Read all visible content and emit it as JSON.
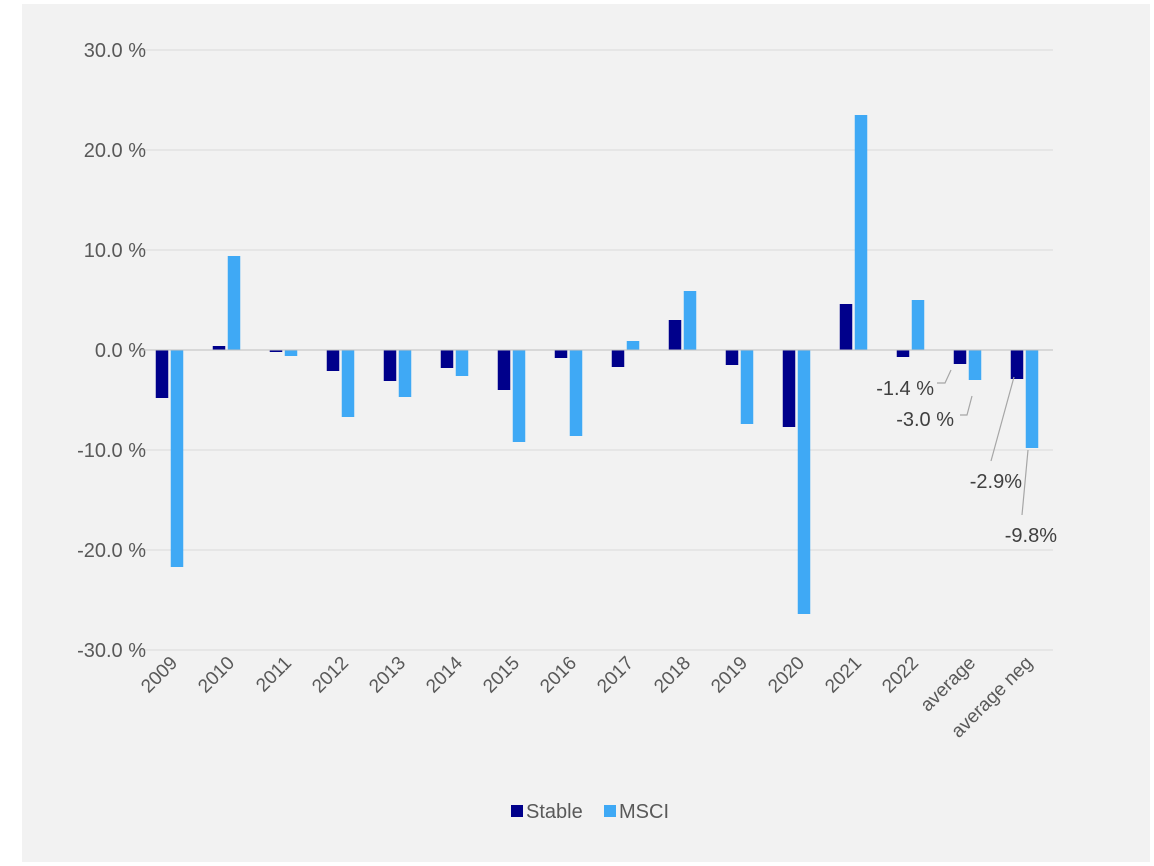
{
  "chart_data": {
    "type": "bar",
    "categories": [
      "2009",
      "2010",
      "2011",
      "2012",
      "2013",
      "2014",
      "2015",
      "2016",
      "2017",
      "2018",
      "2019",
      "2020",
      "2021",
      "2022",
      "average",
      "average neg"
    ],
    "series": [
      {
        "name": "Stable",
        "color": "#00008b",
        "values": [
          -4.8,
          0.4,
          -0.2,
          -2.1,
          -3.1,
          -1.8,
          -4.0,
          -0.8,
          -1.7,
          3.0,
          -1.5,
          -7.7,
          4.6,
          -0.7,
          -1.4,
          -2.9
        ]
      },
      {
        "name": "MSCI",
        "color": "#3fa9f5",
        "values": [
          -21.7,
          9.4,
          -0.6,
          -6.7,
          -4.7,
          -2.6,
          -9.2,
          -8.6,
          0.9,
          5.9,
          -7.4,
          -26.4,
          23.5,
          5.0,
          -3.0,
          -9.8
        ]
      }
    ],
    "ylim": [
      -30,
      30
    ],
    "yticks": [
      {
        "value": 30,
        "label": "30.0 %"
      },
      {
        "value": 20,
        "label": "20.0 %"
      },
      {
        "value": 10,
        "label": "10.0 %"
      },
      {
        "value": 0,
        "label": "0.0 %"
      },
      {
        "value": -10,
        "label": "-10.0 %"
      },
      {
        "value": -20,
        "label": "-20.0 %"
      },
      {
        "value": -30,
        "label": "-30.0 %"
      }
    ],
    "grid": true,
    "legend_position": "bottom",
    "annotations": [
      {
        "category": "average",
        "series": "Stable",
        "text": "-1.4 %"
      },
      {
        "category": "average",
        "series": "MSCI",
        "text": "-3.0 %"
      },
      {
        "category": "average neg",
        "series": "Stable",
        "text": "-2.9%"
      },
      {
        "category": "average neg",
        "series": "MSCI",
        "text": "-9.8%"
      }
    ],
    "title": "",
    "xlabel": "",
    "ylabel": ""
  }
}
